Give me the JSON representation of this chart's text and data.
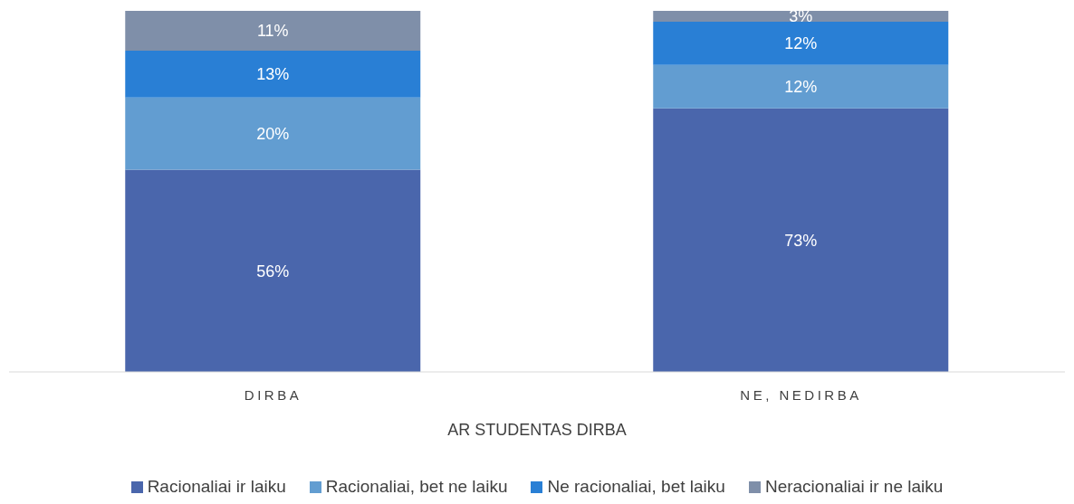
{
  "chart_data": {
    "type": "bar",
    "stacked": true,
    "xlabel": "AR STUDENTAS DIRBA",
    "categories": [
      "DIRBA",
      "NE, NEDIRBA"
    ],
    "series": [
      {
        "name": "Racionaliai ir laiku",
        "color": "#4a66ac",
        "values": [
          56,
          73
        ],
        "value_labels": [
          "56%",
          "73%"
        ]
      },
      {
        "name": "Racionaliai, bet ne laiku",
        "color": "#629dd1",
        "values": [
          20,
          12
        ],
        "value_labels": [
          "20%",
          "12%"
        ]
      },
      {
        "name": "Ne racionaliai, bet laiku",
        "color": "#297fd5",
        "values": [
          13,
          12
        ],
        "value_labels": [
          "13%",
          "12%"
        ]
      },
      {
        "name": "Neracionaliai ir ne laiku",
        "color": "#7f8fa9",
        "values": [
          11,
          3
        ],
        "value_labels": [
          "11%",
          "3%"
        ]
      }
    ],
    "legend": "bottom"
  }
}
